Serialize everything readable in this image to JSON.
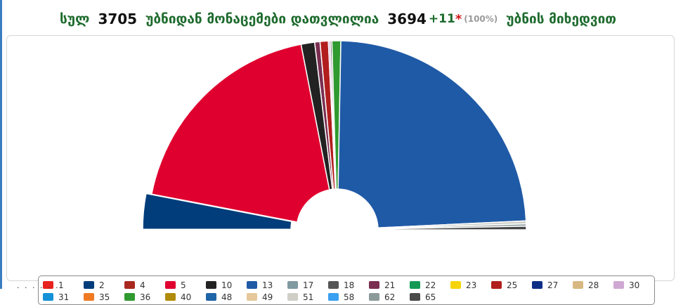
{
  "header": {
    "total_label": "სულ",
    "total_value": "3705",
    "counted_label": "უბნიდან მონაცემები დათვლილია",
    "counted_value": "3694",
    "pending_value": "+11",
    "pending_mark": "*",
    "percent": "(100%)",
    "suffix": "უბნის მიხედვით"
  },
  "chart_data": {
    "type": "pie",
    "shape": "semi-donut",
    "slices": [
      {
        "label": "2",
        "percent": 6.0,
        "color": "#003d7a",
        "pulled": true
      },
      {
        "label": "5",
        "percent": 37.5,
        "color": "#e0002f"
      },
      {
        "label": "10",
        "percent": 2.3,
        "color": "#222222"
      },
      {
        "label": "21",
        "percent": 0.9,
        "color": "#7a2e50"
      },
      {
        "label": "25",
        "percent": 1.4,
        "color": "#b21e1e"
      },
      {
        "label": "30",
        "percent": 0.3,
        "color": "#cfa8d3"
      },
      {
        "label": "18",
        "percent": 0.3,
        "color": "#777777"
      },
      {
        "label": "36",
        "percent": 1.5,
        "color": "#2f9a2f"
      },
      {
        "label": "13",
        "percent": 47.5,
        "color": "#1f5aa6"
      },
      {
        "label": "51",
        "percent": 0.5,
        "color": "#cfcfc8"
      },
      {
        "label": "62",
        "percent": 0.4,
        "color": "#8c9a9a"
      },
      {
        "label": "65",
        "percent": 0.6,
        "color": "#444444"
      }
    ]
  },
  "legend": {
    "items": [
      {
        "label": "1",
        "color": "#e8231f"
      },
      {
        "label": "2",
        "color": "#003d7a"
      },
      {
        "label": "4",
        "color": "#a8281f"
      },
      {
        "label": "5",
        "color": "#e0002f"
      },
      {
        "label": "10",
        "color": "#222222"
      },
      {
        "label": "13",
        "color": "#1f5aa6"
      },
      {
        "label": "17",
        "color": "#7f9aa0"
      },
      {
        "label": "18",
        "color": "#555555"
      },
      {
        "label": "21",
        "color": "#7a2e50"
      },
      {
        "label": "22",
        "color": "#159a55"
      },
      {
        "label": "23",
        "color": "#f5d40a"
      },
      {
        "label": "25",
        "color": "#b21e1e"
      },
      {
        "label": "27",
        "color": "#0e2f86"
      },
      {
        "label": "28",
        "color": "#d8b880"
      },
      {
        "label": "30",
        "color": "#cfa8d3"
      },
      {
        "label": "31",
        "color": "#1591d8"
      },
      {
        "label": "35",
        "color": "#f07a22"
      },
      {
        "label": "36",
        "color": "#2f9a2f"
      },
      {
        "label": "40",
        "color": "#b08a0a"
      },
      {
        "label": "48",
        "color": "#2065a8"
      },
      {
        "label": "49",
        "color": "#e6c89a"
      },
      {
        "label": "51",
        "color": "#cfcfc8"
      },
      {
        "label": "58",
        "color": "#3aa0f0"
      },
      {
        "label": "62",
        "color": "#8c9a9a"
      },
      {
        "label": "65",
        "color": "#4a4a4a"
      }
    ]
  }
}
